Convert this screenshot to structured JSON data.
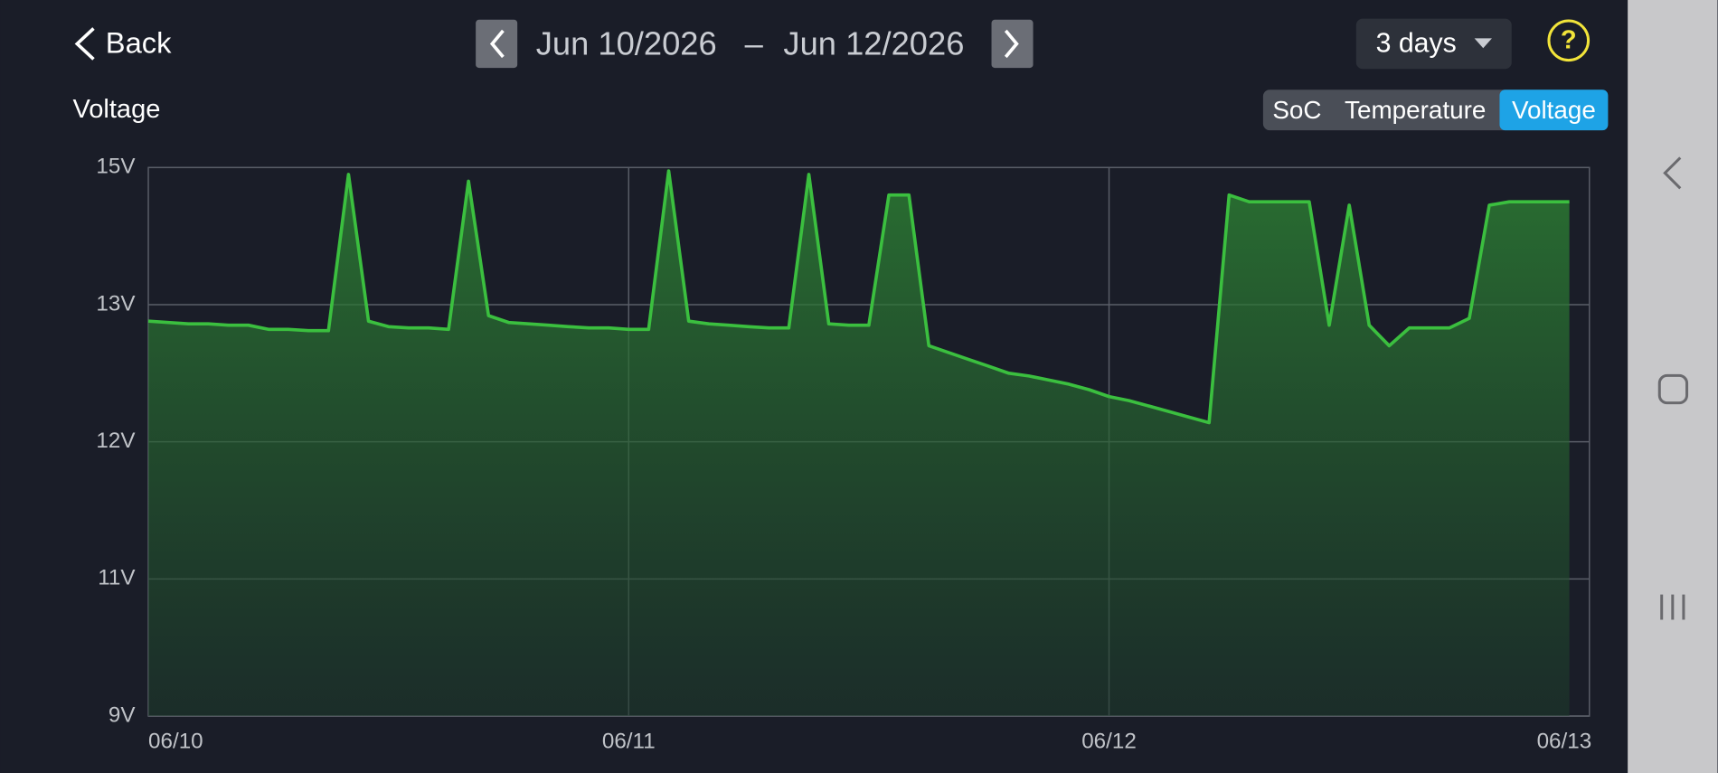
{
  "header": {
    "back": "Back",
    "date_start": "Jun 10/2026",
    "date_separator": "–",
    "date_end": "Jun 12/2026",
    "range": "3 days",
    "help": "?"
  },
  "tabs": {
    "items": [
      "SoC",
      "Temperature",
      "Voltage"
    ],
    "active": 2
  },
  "chart_data": {
    "type": "area",
    "title": "Voltage",
    "categories": [
      "06/10",
      null,
      null,
      null,
      null,
      null,
      null,
      null,
      null,
      null,
      null,
      null,
      null,
      null,
      null,
      null,
      null,
      null,
      null,
      null,
      null,
      null,
      null,
      null,
      "06/11",
      null,
      null,
      null,
      null,
      null,
      null,
      null,
      null,
      null,
      null,
      null,
      null,
      null,
      null,
      null,
      null,
      null,
      null,
      null,
      null,
      null,
      null,
      null,
      "06/12",
      null,
      null,
      null,
      null,
      null,
      null,
      null,
      null,
      null,
      null,
      null,
      null,
      null,
      null,
      null,
      null,
      null,
      null,
      null,
      null,
      null,
      null,
      null,
      "06/13"
    ],
    "series": [
      {
        "name": "Voltage",
        "color": "#3bbf3f",
        "values": [
          12.88,
          12.87,
          12.86,
          12.86,
          12.85,
          12.85,
          12.82,
          12.82,
          12.81,
          12.81,
          14.9,
          12.88,
          12.84,
          12.83,
          12.83,
          12.82,
          14.8,
          12.92,
          12.87,
          12.86,
          12.85,
          12.84,
          12.83,
          12.83,
          12.82,
          12.82,
          14.95,
          12.88,
          12.86,
          12.85,
          12.84,
          12.83,
          12.83,
          14.9,
          12.86,
          12.85,
          12.85,
          14.6,
          14.6,
          12.7,
          12.65,
          12.6,
          12.55,
          12.5,
          12.48,
          12.45,
          12.42,
          12.38,
          12.33,
          12.3,
          12.26,
          12.22,
          12.18,
          12.14,
          14.6,
          14.5,
          14.5,
          14.5,
          14.5,
          12.85,
          14.45,
          12.85,
          12.7,
          12.83,
          12.83,
          12.83,
          12.9,
          14.45,
          14.5,
          14.5,
          14.5,
          14.5,
          null
        ]
      }
    ],
    "ylim": [
      9,
      15
    ],
    "yticks": [
      {
        "value": 9,
        "label": "9V"
      },
      {
        "value": 11,
        "label": "11V"
      },
      {
        "value": 12,
        "label": "12V"
      },
      {
        "value": 13,
        "label": "13V"
      },
      {
        "value": 15,
        "label": "15V"
      }
    ],
    "grid": true
  }
}
